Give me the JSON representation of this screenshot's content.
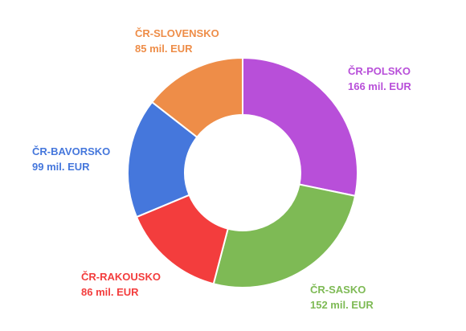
{
  "chart_data": {
    "type": "pie",
    "donut": true,
    "unit": "mil. EUR",
    "slices": [
      {
        "name": "ČR-POLSKO",
        "value": 166,
        "value_label": "166 mil. EUR",
        "color": "#B84FD9"
      },
      {
        "name": "ČR-SASKO",
        "value": 152,
        "value_label": "152 mil. EUR",
        "color": "#7EBA55"
      },
      {
        "name": "ČR-RAKOUSKO",
        "value": 86,
        "value_label": "86 mil. EUR",
        "color": "#F33D3D"
      },
      {
        "name": "ČR-BAVORSKO",
        "value": 99,
        "value_label": "99 mil. EUR",
        "color": "#4577DC"
      },
      {
        "name": "ČR-SLOVENSKO",
        "value": 85,
        "value_label": "85 mil. EUR",
        "color": "#EE8D48"
      }
    ]
  }
}
